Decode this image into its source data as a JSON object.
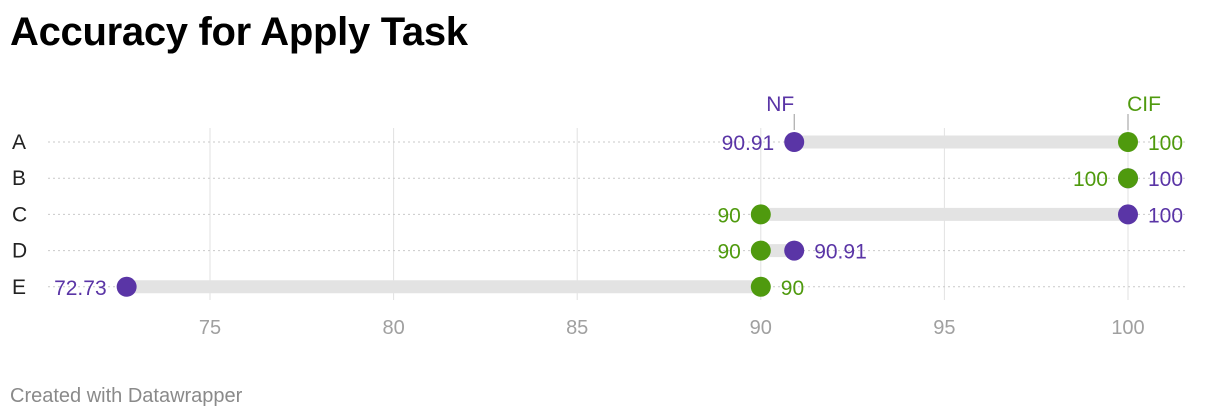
{
  "title": "Accuracy for Apply Task",
  "footer": "Created with Datawrapper",
  "chart_data": {
    "type": "dot-range",
    "title": "Accuracy for Apply Task",
    "categories": [
      "A",
      "B",
      "C",
      "D",
      "E"
    ],
    "series": [
      {
        "name": "NF",
        "color": "#5a35a6",
        "values": [
          90.91,
          100,
          100,
          90.91,
          72.73
        ]
      },
      {
        "name": "CIF",
        "color": "#4f9a0e",
        "values": [
          100,
          100,
          90,
          90,
          90
        ]
      }
    ],
    "value_labels": {
      "NF": [
        "90.91",
        "100",
        "100",
        "90.91",
        "72.73"
      ],
      "CIF": [
        "100",
        "100",
        "90",
        "90",
        "90"
      ]
    },
    "x_ticks": [
      75,
      80,
      85,
      90,
      95,
      100
    ],
    "x_tick_labels": [
      "75",
      "80",
      "85",
      "90",
      "95",
      "100"
    ],
    "xlim": [
      71,
      101.6
    ],
    "grid": true,
    "legend": "labels above first row"
  }
}
